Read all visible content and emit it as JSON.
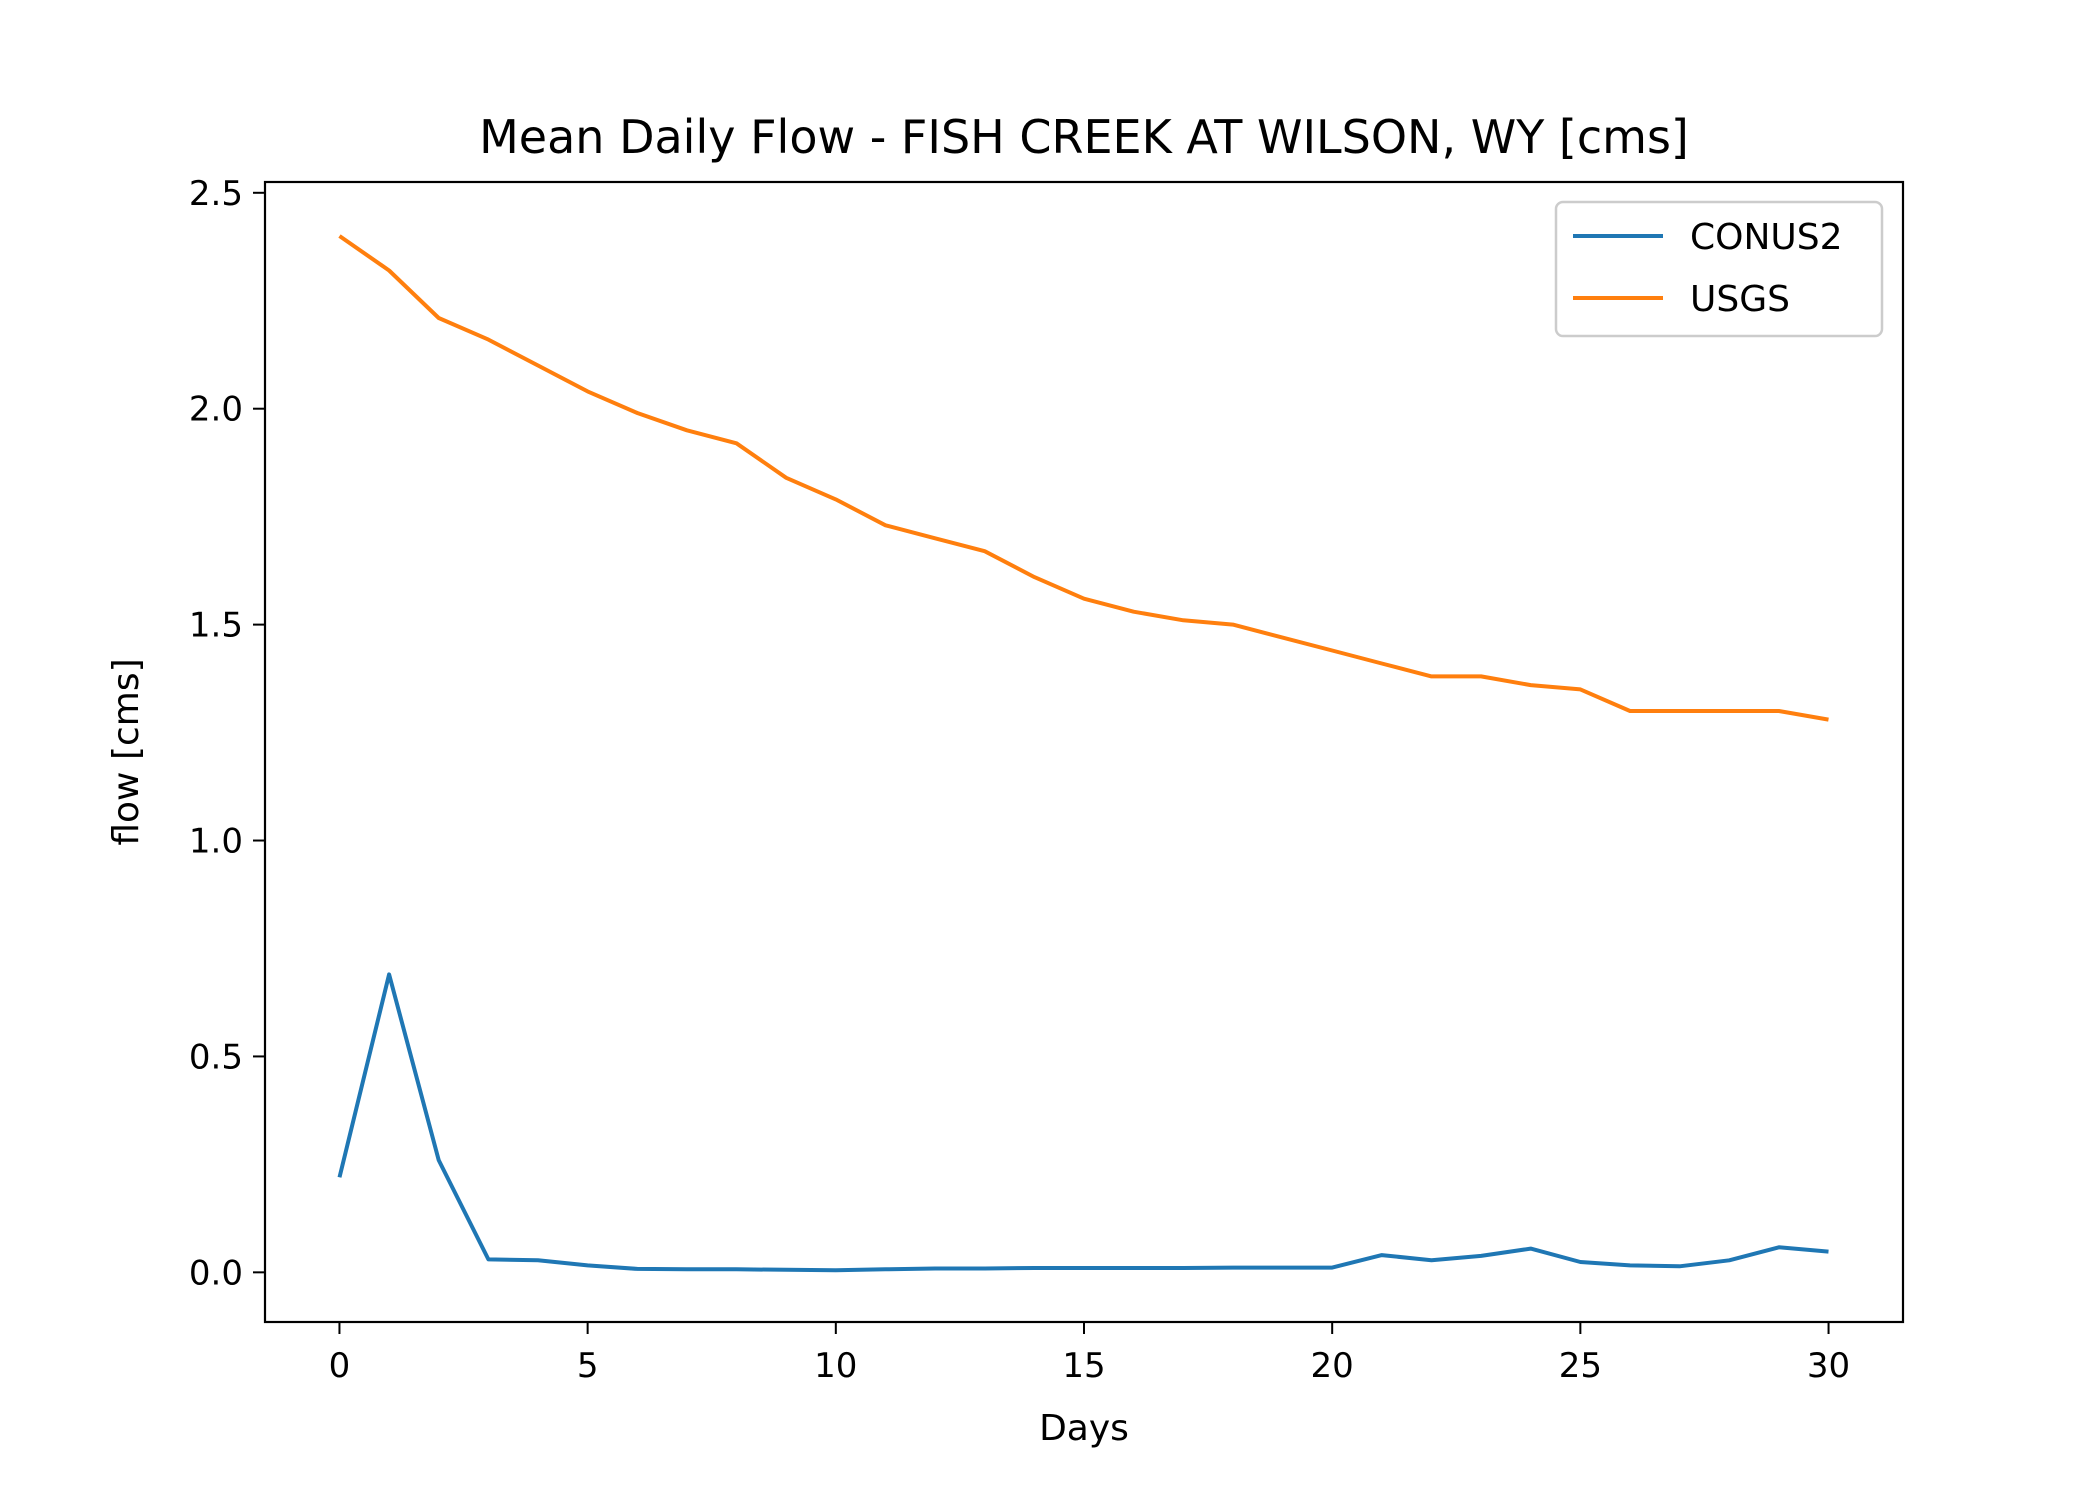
{
  "chart_data": {
    "type": "line",
    "title": "Mean Daily Flow - FISH CREEK AT WILSON, WY [cms]",
    "xlabel": "Days",
    "ylabel": "flow [cms]",
    "xlim": [
      -1.5,
      31.5
    ],
    "ylim": [
      -0.115,
      2.525
    ],
    "xticks": [
      0,
      5,
      10,
      15,
      20,
      25,
      30
    ],
    "xtick_labels": [
      "0",
      "5",
      "10",
      "15",
      "20",
      "25",
      "30"
    ],
    "yticks": [
      0.0,
      0.5,
      1.0,
      1.5,
      2.0,
      2.5
    ],
    "ytick_labels": [
      "0.0",
      "0.5",
      "1.0",
      "1.5",
      "2.0",
      "2.5"
    ],
    "grid": false,
    "legend_position": "upper right",
    "x": [
      0,
      1,
      2,
      3,
      4,
      5,
      6,
      7,
      8,
      9,
      10,
      11,
      12,
      13,
      14,
      15,
      16,
      17,
      18,
      19,
      20,
      21,
      22,
      23,
      24,
      25,
      26,
      27,
      28,
      29,
      30
    ],
    "series": [
      {
        "name": "CONUS2",
        "color": "#1f77b4",
        "values": [
          0.22,
          0.69,
          0.26,
          0.03,
          0.028,
          0.016,
          0.008,
          0.007,
          0.007,
          0.006,
          0.005,
          0.007,
          0.009,
          0.009,
          0.01,
          0.01,
          0.01,
          0.01,
          0.011,
          0.011,
          0.011,
          0.04,
          0.028,
          0.038,
          0.055,
          0.024,
          0.016,
          0.014,
          0.028,
          0.058,
          0.048
        ]
      },
      {
        "name": "USGS",
        "color": "#ff7f0e",
        "values": [
          2.4,
          2.32,
          2.21,
          2.16,
          2.1,
          2.04,
          1.99,
          1.95,
          1.92,
          1.84,
          1.79,
          1.73,
          1.7,
          1.67,
          1.61,
          1.56,
          1.53,
          1.51,
          1.5,
          1.47,
          1.44,
          1.41,
          1.38,
          1.38,
          1.36,
          1.35,
          1.3,
          1.3,
          1.3,
          1.3,
          1.28
        ]
      }
    ]
  }
}
